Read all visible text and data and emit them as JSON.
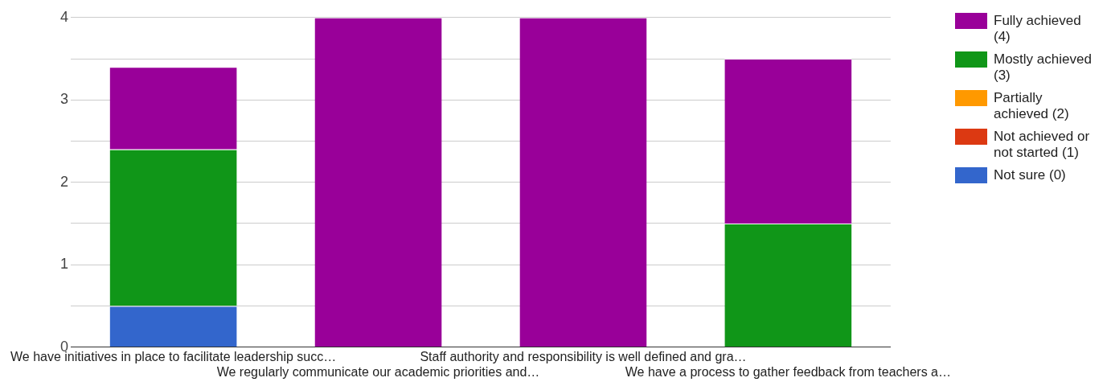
{
  "chart_data": {
    "type": "bar",
    "stacked": true,
    "categories": [
      "We have initiatives in place to facilitate leadership succ…",
      "We regularly communicate our academic priorities and…",
      "Staff authority and responsibility is well defined and gra…",
      "We have a process to gather feedback from teachers a…"
    ],
    "series": [
      {
        "name": "Not sure (0)",
        "color": "#3366cc",
        "values": [
          0.5,
          0,
          0,
          0
        ]
      },
      {
        "name": "Not achieved or not started (1)",
        "color": "#dc3912",
        "values": [
          0,
          0,
          0,
          0
        ]
      },
      {
        "name": "Partially achieved (2)",
        "color": "#ff9900",
        "values": [
          0,
          0,
          0,
          0
        ]
      },
      {
        "name": "Mostly achieved (3)",
        "color": "#109618",
        "values": [
          1.9,
          0,
          0,
          1.5
        ]
      },
      {
        "name": "Fully achieved (4)",
        "color": "#990099",
        "values": [
          1.0,
          4,
          4,
          2.0
        ]
      }
    ],
    "ylim": [
      0,
      4
    ],
    "yticks": [
      0,
      {
        "value": 0.5,
        "label": null
      },
      1,
      {
        "value": 1.5,
        "label": null
      },
      2,
      {
        "value": 2.5,
        "label": null
      },
      3,
      {
        "value": 3.5,
        "label": null
      },
      4
    ],
    "grid": "y",
    "legend": "right"
  }
}
